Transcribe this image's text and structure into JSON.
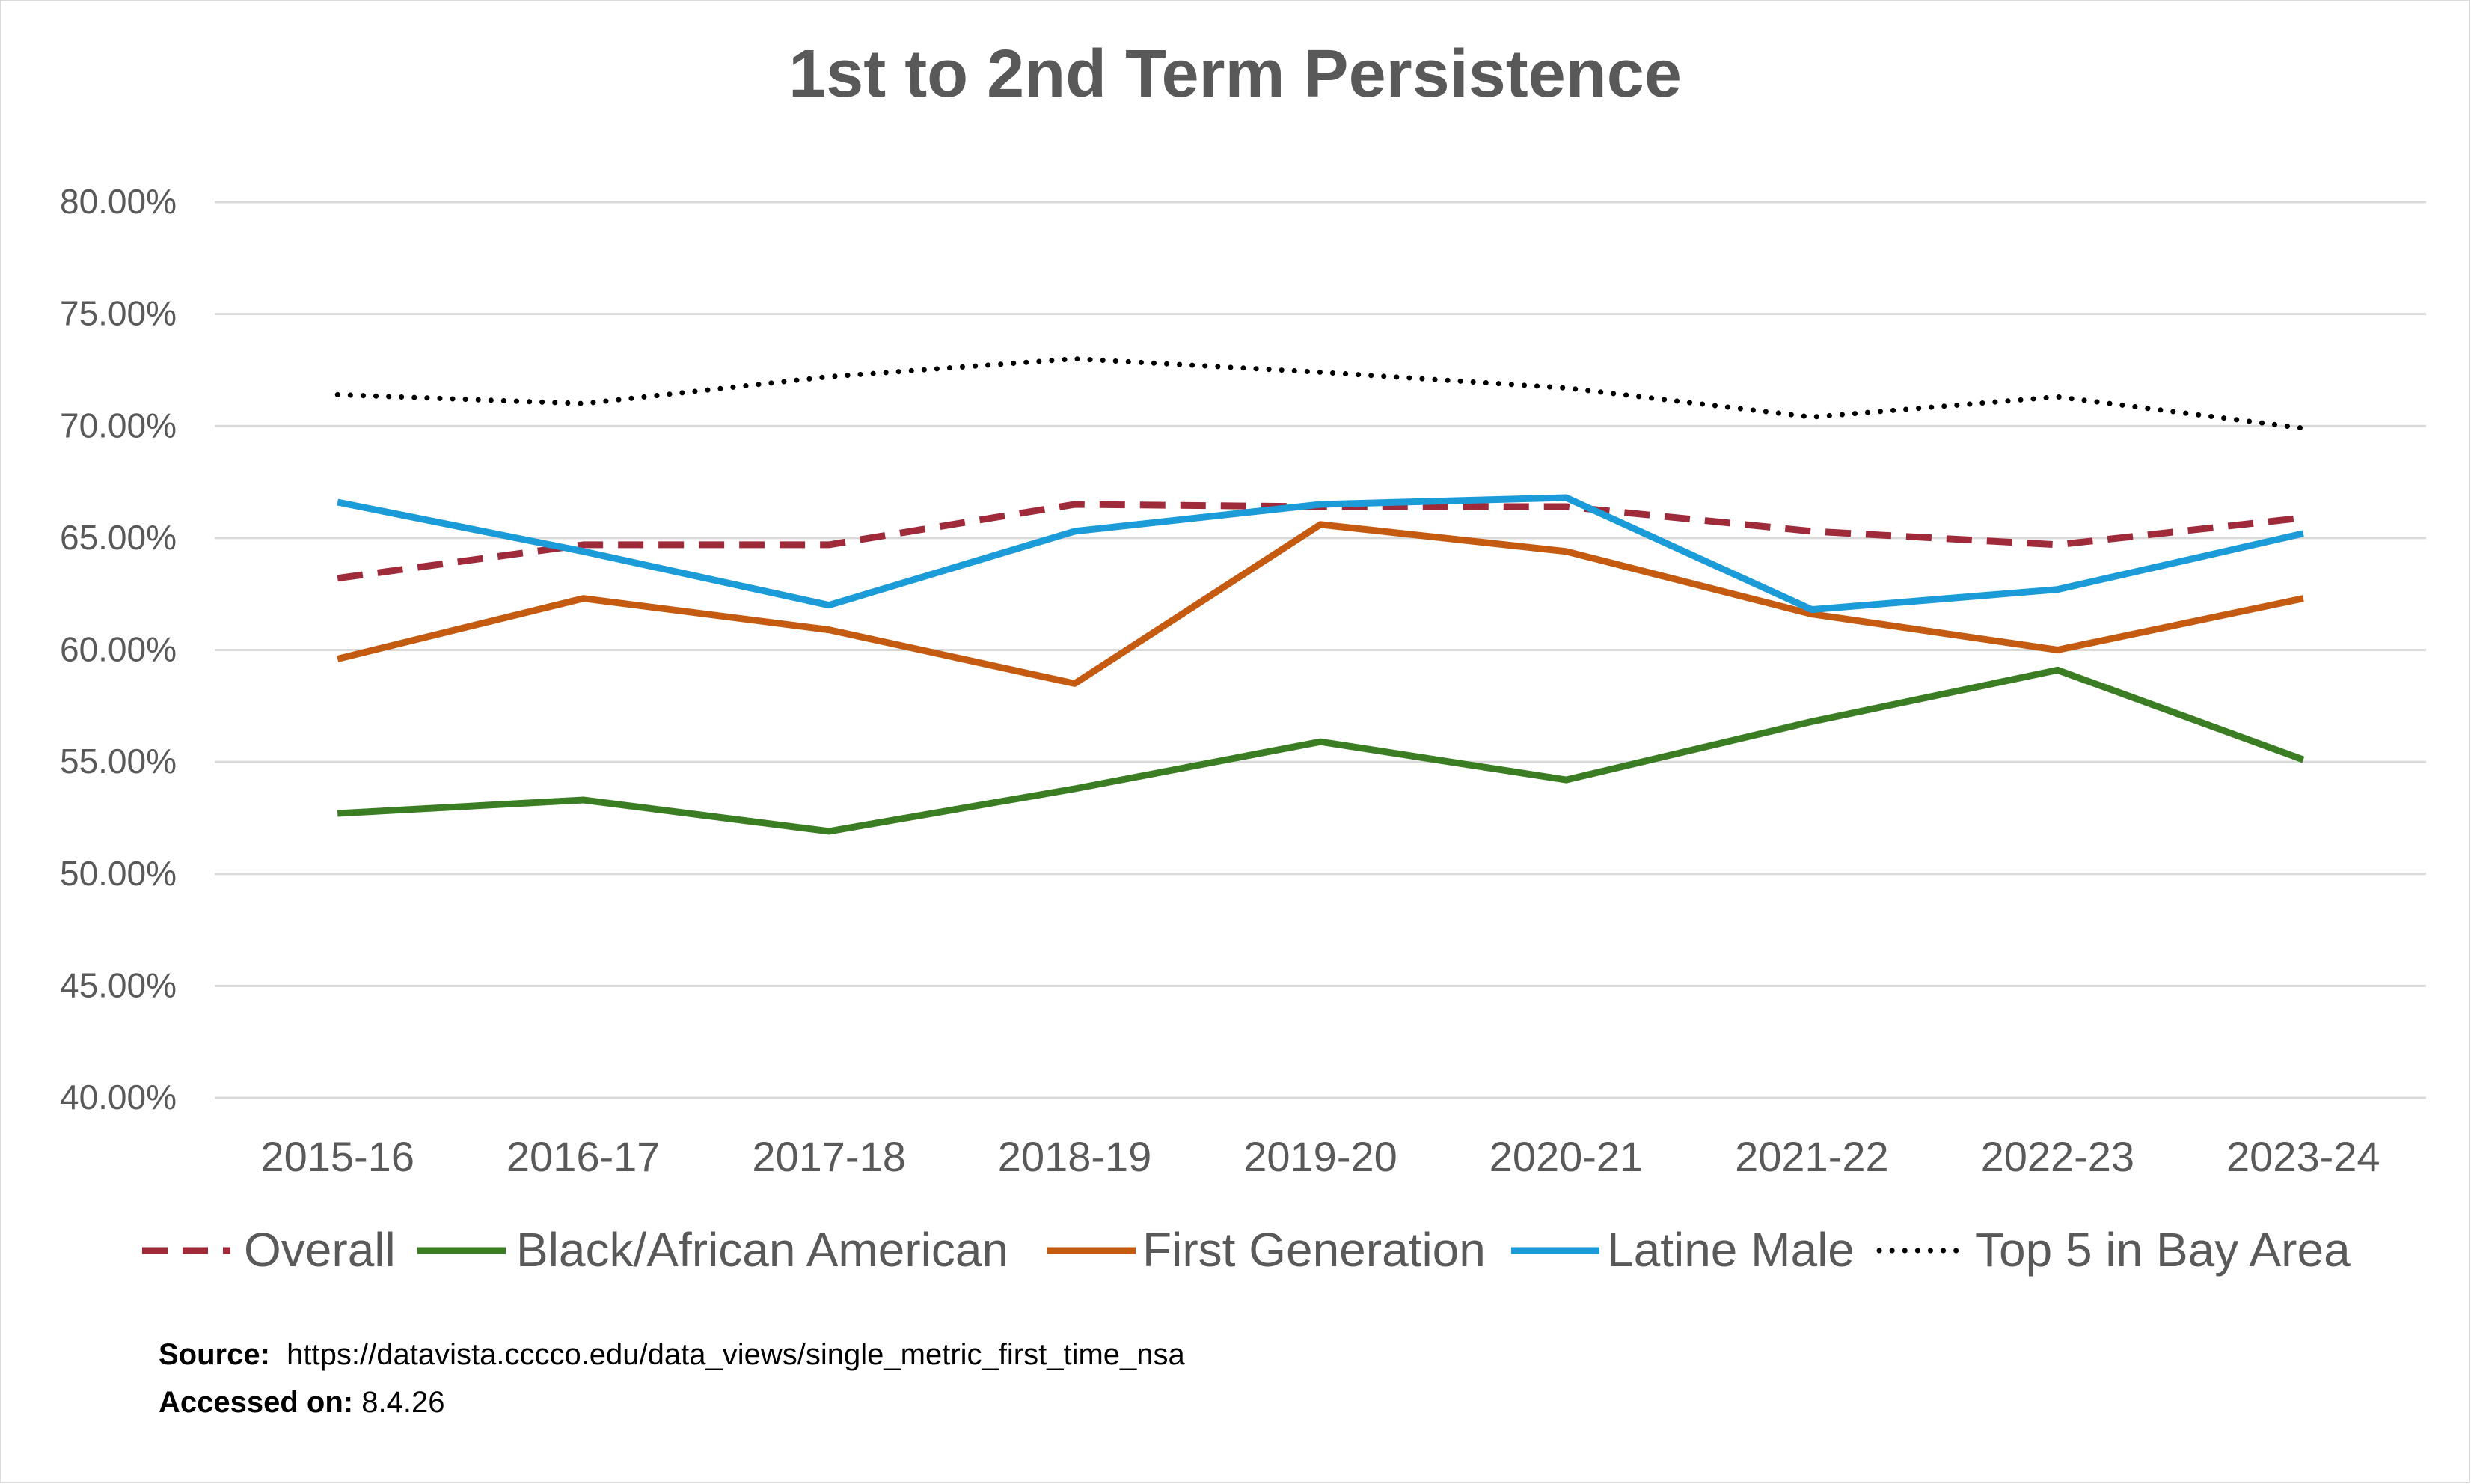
{
  "chart_data": {
    "type": "line",
    "title": "1st to 2nd Term Persistence",
    "xlabel": "",
    "ylabel": "",
    "categories": [
      "2015-16",
      "2016-17",
      "2017-18",
      "2018-19",
      "2019-20",
      "2020-21",
      "2021-22",
      "2022-23",
      "2023-24"
    ],
    "ylim": [
      0.4,
      0.8
    ],
    "ytick_step": 0.05,
    "ytick_labels": [
      "40.00%",
      "45.00%",
      "50.00%",
      "55.00%",
      "60.00%",
      "65.00%",
      "70.00%",
      "75.00%",
      "80.00%"
    ],
    "grid": true,
    "legend_position": "bottom",
    "series": [
      {
        "name": "Overall",
        "color": "#9e2a3a",
        "style": "dashed",
        "values": [
          0.632,
          0.647,
          0.647,
          0.665,
          0.664,
          0.664,
          0.653,
          0.647,
          0.659
        ]
      },
      {
        "name": "Black/African American",
        "color": "#3a7d22",
        "style": "solid",
        "values": [
          0.527,
          0.533,
          0.519,
          0.538,
          0.559,
          0.542,
          0.568,
          0.591,
          0.551
        ]
      },
      {
        "name": "First Generation",
        "color": "#c55a11",
        "style": "solid",
        "values": [
          0.596,
          0.623,
          0.609,
          0.585,
          0.656,
          0.644,
          0.616,
          0.6,
          0.623
        ]
      },
      {
        "name": "Latine Male",
        "color": "#1b9bd7",
        "style": "solid",
        "values": [
          0.666,
          0.644,
          0.62,
          0.653,
          0.665,
          0.668,
          0.618,
          0.627,
          0.652
        ]
      },
      {
        "name": "Top 5 in Bay Area",
        "color": "#000000",
        "style": "dotted",
        "values": [
          0.714,
          0.71,
          0.722,
          0.73,
          0.724,
          0.717,
          0.704,
          0.713,
          0.699
        ]
      }
    ]
  },
  "footer": {
    "source_label": "Source:",
    "source_value": "https://datavista.cccco.edu/data_views/single_metric_first_time_nsa",
    "accessed_label": "Accessed on:",
    "accessed_value": "8.4.26"
  }
}
